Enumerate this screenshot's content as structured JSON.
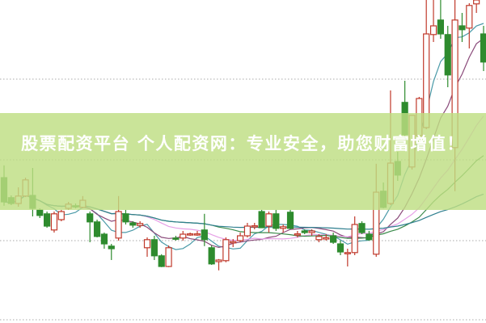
{
  "overlay": {
    "title": "股票配资平台 个人配资网：专业安全，助您财富增值！",
    "background_color": "#bede82",
    "text_color": "#ffffff"
  },
  "chart_data": {
    "type": "candlestick",
    "title": "",
    "xlabel": "",
    "ylabel": "",
    "ylim": [
      0,
      100
    ],
    "grid": "horizontal dotted",
    "up_color": "#c0392b",
    "down_color": "#2e8b2e",
    "candle_fields": [
      "open",
      "high",
      "low",
      "close"
    ],
    "candles": [
      [
        45,
        48.8,
        36.3,
        37.5
      ],
      [
        38.8,
        39.5,
        36.5,
        37
      ],
      [
        37,
        42,
        36,
        39.3
      ],
      [
        39.3,
        45,
        39,
        44.3
      ],
      [
        39.5,
        48,
        33,
        35.5
      ],
      [
        35,
        35.5,
        32.5,
        33.3
      ],
      [
        33.8,
        34.5,
        29.5,
        30
      ],
      [
        28.8,
        34.5,
        28,
        33.8
      ],
      [
        32,
        35,
        31.5,
        34.5
      ],
      [
        35.5,
        37.5,
        35,
        36.8
      ],
      [
        36.3,
        37,
        35.5,
        36.2
      ],
      [
        35.8,
        39.3,
        35.5,
        38
      ],
      [
        33.8,
        34.5,
        25,
        31.3
      ],
      [
        31.3,
        32,
        26.5,
        26.8
      ],
      [
        27.5,
        28,
        23,
        24.5
      ],
      [
        23.8,
        24.5,
        19.5,
        23
      ],
      [
        26.3,
        39.3,
        25.5,
        34.5
      ],
      [
        33.8,
        35,
        30.5,
        31.3
      ],
      [
        31,
        31.5,
        29.5,
        30.3
      ],
      [
        30.2,
        31.5,
        29.5,
        30.8
      ],
      [
        23.3,
        26.5,
        20.5,
        25.8
      ],
      [
        25.8,
        27,
        19.5,
        20.8
      ],
      [
        20.8,
        21.3,
        17.3,
        17.5
      ],
      [
        17.5,
        24,
        17.3,
        23.3
      ],
      [
        26.3,
        27,
        25.5,
        26.2
      ],
      [
        26.3,
        28.5,
        25.5,
        27.5
      ],
      [
        27.5,
        28,
        27,
        27.6
      ],
      [
        27.5,
        28.5,
        27,
        27.6
      ],
      [
        28.8,
        33.8,
        23.8,
        25.8
      ],
      [
        23.3,
        24,
        18,
        18.3
      ],
      [
        19,
        19.8,
        16.3,
        19.5
      ],
      [
        19.3,
        26.5,
        18.8,
        25.8
      ],
      [
        24.8,
        26,
        23.5,
        25.2
      ],
      [
        25.5,
        28,
        25,
        27
      ],
      [
        27,
        31,
        26.5,
        30
      ],
      [
        30,
        31,
        29,
        30.1
      ],
      [
        34.5,
        35,
        29.5,
        29.5
      ],
      [
        30,
        34.5,
        28,
        33.8
      ],
      [
        33.8,
        35,
        28.5,
        29.3
      ],
      [
        29.3,
        30.5,
        28,
        29.8
      ],
      [
        34.3,
        35,
        29,
        29.3
      ],
      [
        27.3,
        28.5,
        26.5,
        27.6
      ],
      [
        28.5,
        29,
        27.5,
        28
      ],
      [
        28,
        29,
        27,
        28.5
      ],
      [
        25.8,
        27.5,
        25,
        26.8
      ],
      [
        26,
        27.5,
        25.5,
        26.4
      ],
      [
        27,
        28,
        24.5,
        25
      ],
      [
        24.5,
        25.5,
        21,
        22
      ],
      [
        21.5,
        23,
        17.5,
        21.8
      ],
      [
        21.8,
        33,
        21,
        30.5
      ],
      [
        30.8,
        31.5,
        27.5,
        28
      ],
      [
        27.5,
        28.5,
        25.5,
        25.8
      ],
      [
        21.3,
        49.3,
        20.5,
        40.5
      ],
      [
        40.8,
        43.5,
        35.5,
        35.8
      ],
      [
        37,
        72,
        36.5,
        49.5
      ],
      [
        50,
        53,
        44,
        45.8
      ],
      [
        68.3,
        75,
        57,
        58.3
      ],
      [
        48.3,
        64.3,
        47.5,
        64.3
      ],
      [
        58,
        70,
        57.5,
        69.5
      ],
      [
        60.5,
        101,
        60,
        89.5
      ],
      [
        89.3,
        101,
        87,
        92
      ],
      [
        93.8,
        101,
        88,
        89.5
      ],
      [
        89.3,
        92,
        73,
        76.8
      ],
      [
        54.3,
        101,
        40.8,
        93.8
      ],
      [
        92,
        96,
        87,
        90.8
      ],
      [
        91.3,
        99,
        85,
        98.3
      ],
      [
        98.8,
        101,
        96,
        100
      ],
      [
        89.5,
        92,
        78,
        80.8
      ]
    ],
    "moving_averages": [
      {
        "period": 5,
        "color": "#4a9aa8"
      },
      {
        "period": 10,
        "color": "#8a4a7a"
      },
      {
        "period": 20,
        "color": "#e6a0e6"
      },
      {
        "period": 30,
        "color": "#3a8a4a"
      },
      {
        "period": 60,
        "color": "#2f7f8f"
      }
    ]
  }
}
